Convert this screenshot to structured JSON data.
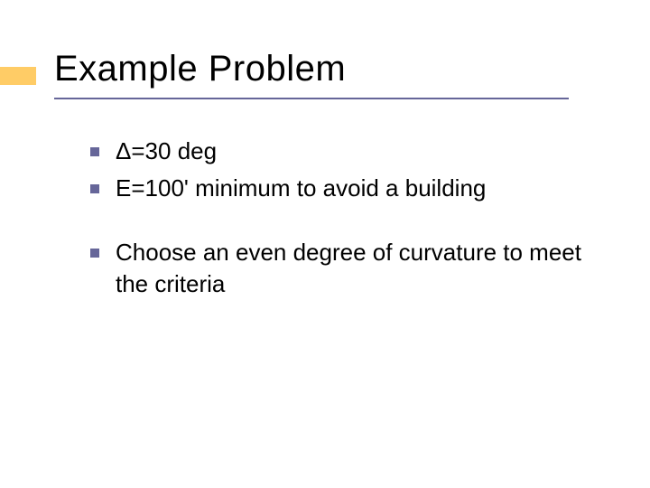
{
  "slide": {
    "title": "Example Problem",
    "accent_color": "#ffcc66",
    "underline_color": "#666699",
    "bullet_color": "#666699",
    "background_color": "#ffffff",
    "title_fontsize": 40,
    "body_fontsize": 26,
    "bullets": [
      {
        "text": "Δ=30 deg",
        "gap_before": false
      },
      {
        "text": "E=100' minimum to avoid a building",
        "gap_before": false
      },
      {
        "text": "Choose an even degree of curvature to meet the criteria",
        "gap_before": true
      }
    ]
  }
}
